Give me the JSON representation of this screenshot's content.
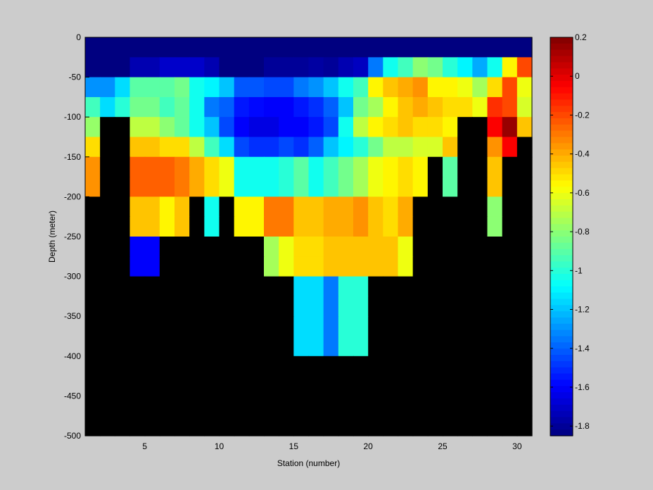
{
  "chart_data": {
    "type": "heatmap",
    "title": "",
    "xlabel": "Station (number)",
    "ylabel": "Depth (meter)",
    "xlim": [
      1,
      31
    ],
    "ylim": [
      -500,
      0
    ],
    "x_ticks": [
      5,
      10,
      15,
      20,
      25,
      30
    ],
    "y_ticks": [
      0,
      -50,
      -100,
      -150,
      -200,
      -250,
      -300,
      -350,
      -400,
      -450,
      -500
    ],
    "clim": [
      -1.85,
      0.2
    ],
    "colorbar_ticks": [
      0.2,
      0,
      -0.2,
      -0.4,
      -0.6,
      -0.8,
      -1,
      -1.2,
      -1.4,
      -1.6,
      -1.8
    ],
    "colormap": "jet",
    "missing_color": "#000000",
    "background_color": "#cccccc",
    "stations": [
      1,
      2,
      3,
      4,
      5,
      6,
      7,
      8,
      9,
      10,
      11,
      12,
      13,
      14,
      15,
      16,
      17,
      18,
      19,
      20,
      21,
      22,
      23,
      24,
      25,
      26,
      27,
      28,
      29,
      30
    ],
    "depths": [
      0,
      -25,
      -50,
      -75,
      -100,
      -125,
      -150,
      -175,
      -200,
      -225,
      -250,
      -275,
      -300,
      -325,
      -350,
      -375,
      -400,
      -425,
      -450,
      -475
    ],
    "values": [
      [
        -1.85,
        -1.85,
        -1.85,
        -1.85,
        -1.85,
        -1.85,
        -1.85,
        -1.85,
        -1.85,
        -1.85,
        -1.85,
        -1.85,
        -1.85,
        -1.85,
        -1.85,
        -1.85,
        -1.85,
        -1.85,
        -1.85,
        -1.85,
        -1.85,
        -1.85,
        -1.85,
        -1.85,
        -1.85,
        -1.85,
        -1.85,
        -1.85,
        -1.85,
        -1.85
      ],
      [
        -1.85,
        -1.85,
        -1.85,
        -1.75,
        -1.75,
        -1.7,
        -1.7,
        -1.7,
        -1.75,
        -1.85,
        -1.85,
        -1.85,
        -1.8,
        -1.8,
        -1.8,
        -1.78,
        -1.8,
        -1.75,
        -1.72,
        -1.35,
        -1.05,
        -0.95,
        -0.8,
        -0.85,
        -1.0,
        -1.1,
        -1.25,
        -1.05,
        -0.55,
        -0.2
      ],
      [
        -1.3,
        -1.3,
        -1.15,
        -0.9,
        -0.9,
        -0.9,
        -0.85,
        -1.05,
        -1.1,
        -1.2,
        -1.42,
        -1.42,
        -1.45,
        -1.45,
        -1.35,
        -1.3,
        -1.2,
        -1.05,
        -0.95,
        -0.55,
        -0.45,
        -0.4,
        -0.35,
        -0.55,
        -0.55,
        -0.6,
        -0.75,
        -0.5,
        -0.2,
        -0.6
      ],
      [
        -0.95,
        -1.15,
        -1.0,
        -0.85,
        -0.85,
        -0.95,
        -0.88,
        -1.05,
        -1.35,
        -1.4,
        -1.55,
        -1.58,
        -1.6,
        -1.6,
        -1.55,
        -1.5,
        -1.4,
        -1.2,
        -0.85,
        -0.75,
        -0.55,
        -0.45,
        -0.4,
        -0.45,
        -0.5,
        -0.5,
        -0.6,
        -0.15,
        -0.2,
        -0.65
      ],
      [
        -0.78,
        null,
        null,
        -0.7,
        -0.7,
        -0.8,
        -0.88,
        -1.05,
        -1.2,
        -1.45,
        -1.6,
        -1.65,
        -1.65,
        -1.6,
        -1.6,
        -1.55,
        -1.45,
        -1.05,
        -0.7,
        -0.55,
        -0.5,
        -0.45,
        -0.5,
        -0.5,
        -0.55,
        null,
        null,
        -0.05,
        0.15,
        -0.45
      ],
      [
        -0.5,
        null,
        null,
        -0.45,
        -0.45,
        -0.5,
        -0.5,
        -0.7,
        -0.95,
        -1.15,
        -1.45,
        -1.5,
        -1.5,
        -1.45,
        -1.5,
        -1.4,
        -1.2,
        -1.1,
        -1.0,
        -0.85,
        -0.7,
        -0.7,
        -0.65,
        -0.65,
        -0.45,
        null,
        null,
        -0.35,
        -0.05,
        null
      ],
      [
        -0.35,
        null,
        null,
        -0.25,
        -0.25,
        -0.25,
        -0.3,
        -0.4,
        -0.5,
        -0.6,
        -1.05,
        -1.05,
        -1.05,
        -1.0,
        -0.9,
        -1.05,
        -0.95,
        -0.85,
        -0.75,
        -0.6,
        -0.55,
        -0.5,
        -0.55,
        null,
        -0.9,
        null,
        null,
        -0.45,
        null,
        null
      ],
      [
        -0.35,
        null,
        null,
        -0.25,
        -0.25,
        -0.25,
        -0.3,
        -0.4,
        -0.5,
        -0.6,
        -1.05,
        -1.05,
        -1.05,
        -1.0,
        -0.9,
        -1.05,
        -0.95,
        -0.85,
        -0.75,
        -0.6,
        -0.55,
        -0.5,
        -0.55,
        null,
        -0.9,
        null,
        null,
        -0.45,
        null,
        null
      ],
      [
        null,
        null,
        null,
        -0.45,
        -0.45,
        -0.55,
        -0.45,
        null,
        -1.05,
        null,
        -0.55,
        -0.55,
        -0.3,
        -0.3,
        -0.45,
        -0.45,
        -0.4,
        -0.4,
        -0.35,
        -0.45,
        -0.5,
        -0.4,
        null,
        null,
        null,
        null,
        null,
        -0.8,
        null,
        null
      ],
      [
        null,
        null,
        null,
        -0.45,
        -0.45,
        -0.55,
        -0.45,
        null,
        -1.05,
        null,
        -0.55,
        -0.55,
        -0.3,
        -0.3,
        -0.45,
        -0.45,
        -0.4,
        -0.4,
        -0.35,
        -0.45,
        -0.5,
        -0.4,
        null,
        null,
        null,
        null,
        null,
        -0.8,
        null,
        null
      ],
      [
        null,
        null,
        null,
        -1.6,
        -1.6,
        null,
        null,
        null,
        null,
        null,
        null,
        null,
        -0.75,
        -0.6,
        -0.5,
        -0.5,
        -0.45,
        -0.45,
        -0.45,
        -0.45,
        -0.45,
        -0.6,
        null,
        null,
        null,
        null,
        null,
        null,
        null,
        null
      ],
      [
        null,
        null,
        null,
        -1.6,
        -1.6,
        null,
        null,
        null,
        null,
        null,
        null,
        null,
        -0.75,
        -0.6,
        -0.5,
        -0.5,
        -0.45,
        -0.45,
        -0.45,
        -0.45,
        -0.45,
        -0.6,
        null,
        null,
        null,
        null,
        null,
        null,
        null,
        null
      ],
      [
        null,
        null,
        null,
        null,
        null,
        null,
        null,
        null,
        null,
        null,
        null,
        null,
        null,
        null,
        -1.15,
        -1.15,
        -1.35,
        -1.0,
        -1.0,
        null,
        null,
        null,
        null,
        null,
        null,
        null,
        null,
        null,
        null,
        null
      ],
      [
        null,
        null,
        null,
        null,
        null,
        null,
        null,
        null,
        null,
        null,
        null,
        null,
        null,
        null,
        -1.15,
        -1.15,
        -1.35,
        -1.0,
        -1.0,
        null,
        null,
        null,
        null,
        null,
        null,
        null,
        null,
        null,
        null,
        null
      ],
      [
        null,
        null,
        null,
        null,
        null,
        null,
        null,
        null,
        null,
        null,
        null,
        null,
        null,
        null,
        -1.15,
        -1.15,
        -1.35,
        -1.0,
        -1.0,
        null,
        null,
        null,
        null,
        null,
        null,
        null,
        null,
        null,
        null,
        null
      ],
      [
        null,
        null,
        null,
        null,
        null,
        null,
        null,
        null,
        null,
        null,
        null,
        null,
        null,
        null,
        -1.15,
        -1.15,
        -1.35,
        -1.0,
        -1.0,
        null,
        null,
        null,
        null,
        null,
        null,
        null,
        null,
        null,
        null,
        null
      ],
      [
        null,
        null,
        null,
        null,
        null,
        null,
        null,
        null,
        null,
        null,
        null,
        null,
        null,
        null,
        null,
        null,
        null,
        null,
        null,
        null,
        null,
        null,
        null,
        null,
        null,
        null,
        null,
        null,
        null,
        null
      ],
      [
        null,
        null,
        null,
        null,
        null,
        null,
        null,
        null,
        null,
        null,
        null,
        null,
        null,
        null,
        null,
        null,
        null,
        null,
        null,
        null,
        null,
        null,
        null,
        null,
        null,
        null,
        null,
        null,
        null,
        null
      ],
      [
        null,
        null,
        null,
        null,
        null,
        null,
        null,
        null,
        null,
        null,
        null,
        null,
        null,
        null,
        null,
        null,
        null,
        null,
        null,
        null,
        null,
        null,
        null,
        null,
        null,
        null,
        null,
        null,
        null,
        null
      ],
      [
        null,
        null,
        null,
        null,
        null,
        null,
        null,
        null,
        null,
        null,
        null,
        null,
        null,
        null,
        null,
        null,
        null,
        null,
        null,
        null,
        null,
        null,
        null,
        null,
        null,
        null,
        null,
        null,
        null,
        null
      ]
    ]
  }
}
